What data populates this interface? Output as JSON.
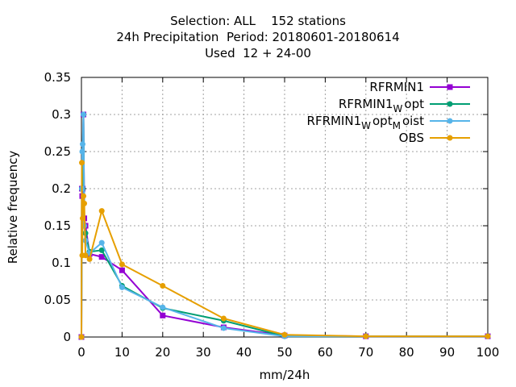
{
  "chart_data": {
    "type": "line",
    "title_lines": [
      "Selection: ALL    152 stations",
      "24h Precipitation  Period: 20180601-20180614",
      "Used  12 + 24-00"
    ],
    "xlabel": "mm/24h",
    "ylabel": "Relative frequency",
    "xlim": [
      0,
      100
    ],
    "ylim": [
      0,
      0.35
    ],
    "xticks": [
      "0",
      "10",
      "20",
      "30",
      "40",
      "50",
      "60",
      "70",
      "80",
      "90",
      "100"
    ],
    "yticks": [
      "0",
      "0.05",
      "0.1",
      "0.15",
      "0.2",
      "0.25",
      "0.3",
      "0.35"
    ],
    "grid": true,
    "legend_position": "top-right",
    "series": [
      {
        "name": "RFRMIN1",
        "legend_main": "RFRMIN1",
        "legend_parts": [],
        "color": "#9400d3",
        "marker": "square",
        "x": [
          0,
          0.1,
          0.2,
          0.3,
          0.5,
          0.7,
          1,
          2,
          5,
          10,
          20,
          35,
          50,
          70,
          100
        ],
        "y": [
          0,
          0.2,
          0.19,
          0.2,
          0.3,
          0.16,
          0.15,
          0.112,
          0.108,
          0.09,
          0.029,
          0.013,
          0.002,
          0.001,
          0.001
        ]
      },
      {
        "name": "RFRMIN1_W opt",
        "legend_main": "RFRMIN1",
        "legend_parts": [
          {
            "sub": "W",
            "text": "opt"
          }
        ],
        "color": "#009e73",
        "marker": "circle",
        "x": [
          0,
          0.1,
          0.2,
          0.3,
          0.5,
          0.7,
          1,
          2,
          5,
          10,
          20,
          35,
          50,
          70,
          100
        ],
        "y": [
          0,
          0.2,
          0.2,
          0.2,
          0.3,
          0.15,
          0.14,
          0.115,
          0.117,
          0.069,
          0.039,
          0.022,
          0.001,
          0.001,
          0.001
        ]
      },
      {
        "name": "RFRMIN1_W opt_M oist",
        "legend_main": "RFRMIN1",
        "legend_parts": [
          {
            "sub": "W",
            "text": "opt"
          },
          {
            "sub": "M",
            "text": "oist"
          }
        ],
        "color": "#56b4e9",
        "marker": "circle",
        "x": [
          0,
          0.1,
          0.2,
          0.3,
          0.5,
          0.7,
          1,
          2,
          5,
          10,
          20,
          35,
          50,
          70,
          100
        ],
        "y": [
          0,
          0.2,
          0.25,
          0.26,
          0.3,
          0.15,
          0.13,
          0.113,
          0.127,
          0.067,
          0.04,
          0.012,
          0.001,
          0.001,
          0.001
        ]
      },
      {
        "name": "OBS",
        "legend_main": "OBS",
        "legend_parts": [],
        "color": "#e69f00",
        "marker": "circle",
        "x": [
          0,
          0.1,
          0.2,
          0.3,
          0.5,
          0.7,
          1,
          2,
          5,
          10,
          20,
          35,
          50,
          70,
          100
        ],
        "y": [
          0,
          0.235,
          0.11,
          0.16,
          0.19,
          0.18,
          0.11,
          0.105,
          0.17,
          0.098,
          0.069,
          0.025,
          0.003,
          0.001,
          0.001
        ]
      }
    ]
  }
}
